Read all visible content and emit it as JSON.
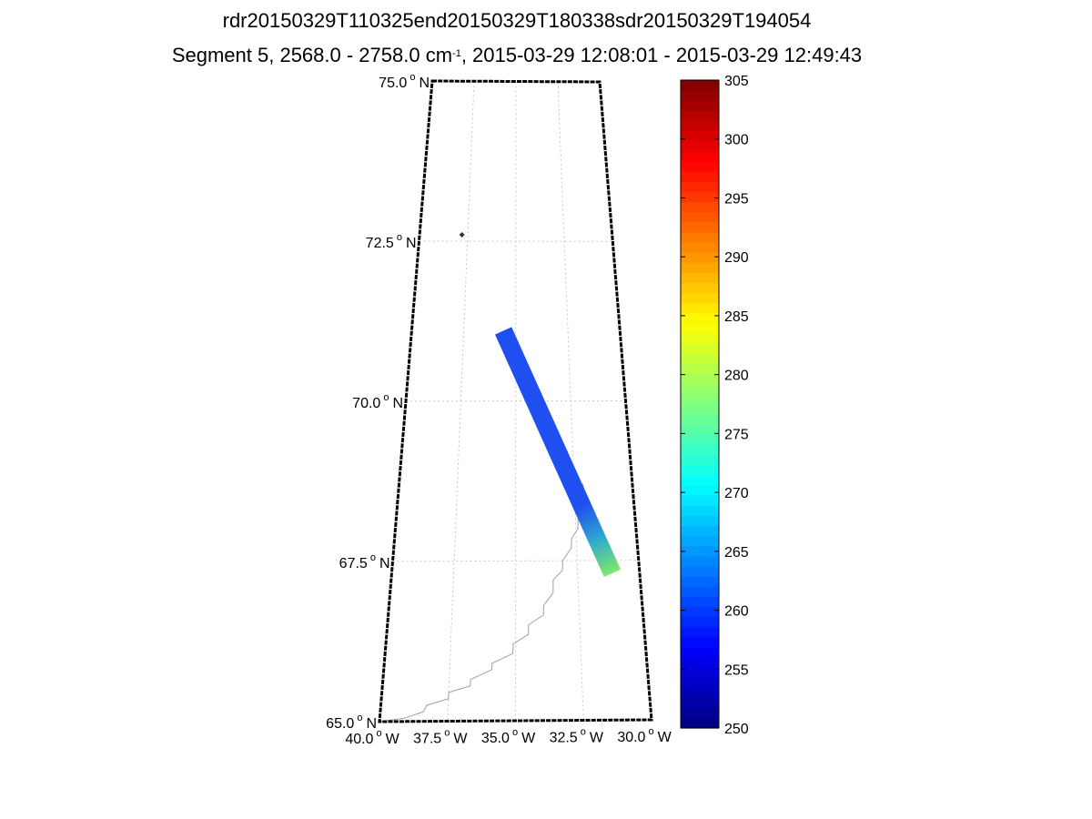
{
  "titles": {
    "line1": "rdr20150329T110325end20150329T180338sdr20150329T194054",
    "line2_prefix": "Segment 5, 2568.0 - 2758.0 cm",
    "line2_exp": "-1",
    "line2_suffix": ", 2015-03-29 12:08:01 - 2015-03-29 12:49:43"
  },
  "map": {
    "lat_labels": [
      {
        "num": "75.0",
        "deg": "o",
        "hem": "N"
      },
      {
        "num": "72.5",
        "deg": "o",
        "hem": "N"
      },
      {
        "num": "70.0",
        "deg": "o",
        "hem": "N"
      },
      {
        "num": "67.5",
        "deg": "o",
        "hem": "N"
      },
      {
        "num": "65.0",
        "deg": "o",
        "hem": "N"
      }
    ],
    "lon_labels": [
      {
        "num": "40.0",
        "deg": "o",
        "hem": "W"
      },
      {
        "num": "37.5",
        "deg": "o",
        "hem": "W"
      },
      {
        "num": "35.0",
        "deg": "o",
        "hem": "W"
      },
      {
        "num": "32.5",
        "deg": "o",
        "hem": "W"
      },
      {
        "num": "30.0",
        "deg": "o",
        "hem": "W"
      }
    ],
    "lat_range": [
      65.0,
      75.0
    ],
    "lon_range": [
      -40.0,
      -30.0
    ],
    "grid": "dotted",
    "swath": {
      "lat_start": 71.1,
      "lon_start": -35.6,
      "lat_end": 67.3,
      "lon_end": -31.1
    },
    "marker": {
      "lat": 72.6,
      "lon": -37.8
    }
  },
  "colorbar": {
    "min": 250,
    "max": 305,
    "ticks": [
      "250",
      "255",
      "260",
      "265",
      "270",
      "275",
      "280",
      "285",
      "290",
      "295",
      "300",
      "305"
    ],
    "colormap": "jet"
  },
  "colors": {
    "frame": "#000000",
    "grid": "#c8c8c8",
    "coastline": "#a0a0a0",
    "swath_cold": "#1f4ff0",
    "swath_warm": "#7fe86a"
  }
}
